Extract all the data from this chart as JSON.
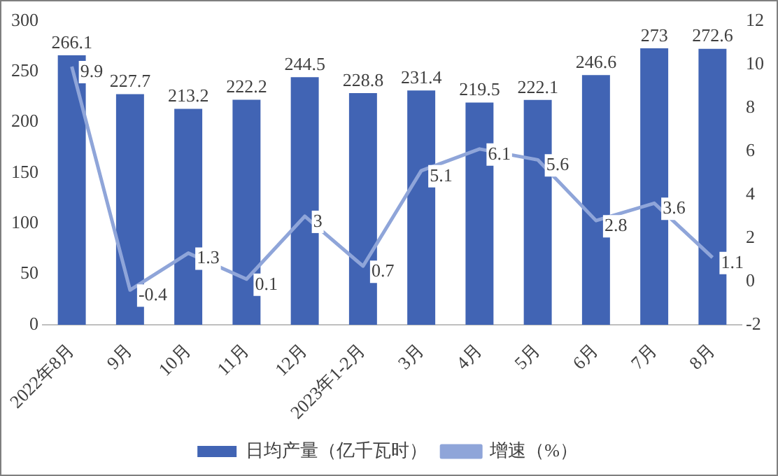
{
  "chart_data": {
    "type": "bar",
    "categories": [
      "2022年8月",
      "9月",
      "10月",
      "11月",
      "12月",
      "2023年1-2月",
      "3月",
      "4月",
      "5月",
      "6月",
      "7月",
      "8月"
    ],
    "series": [
      {
        "name": "日均产量（亿千瓦时）",
        "color": "#4164b4",
        "values": [
          266.1,
          227.7,
          213.2,
          222.2,
          244.5,
          228.8,
          231.4,
          219.5,
          222.1,
          246.6,
          273,
          272.6
        ]
      },
      {
        "name": "增速（%）",
        "type": "line",
        "axis": "y2",
        "color": "#8fa5d9",
        "values": [
          9.9,
          -0.4,
          1.3,
          0.1,
          3,
          0.7,
          5.1,
          6.1,
          5.6,
          2.8,
          3.6,
          1.1
        ]
      }
    ],
    "ylim": [
      0,
      300
    ],
    "yticks": [
      0,
      50,
      100,
      150,
      200,
      250,
      300
    ],
    "y2lim": [
      -2,
      12
    ],
    "y2ticks": [
      -2,
      0,
      2,
      4,
      6,
      8,
      10,
      12
    ],
    "grid": false,
    "legend": "bottom",
    "marker": "none",
    "line_style": "solid",
    "data_labels": true
  }
}
